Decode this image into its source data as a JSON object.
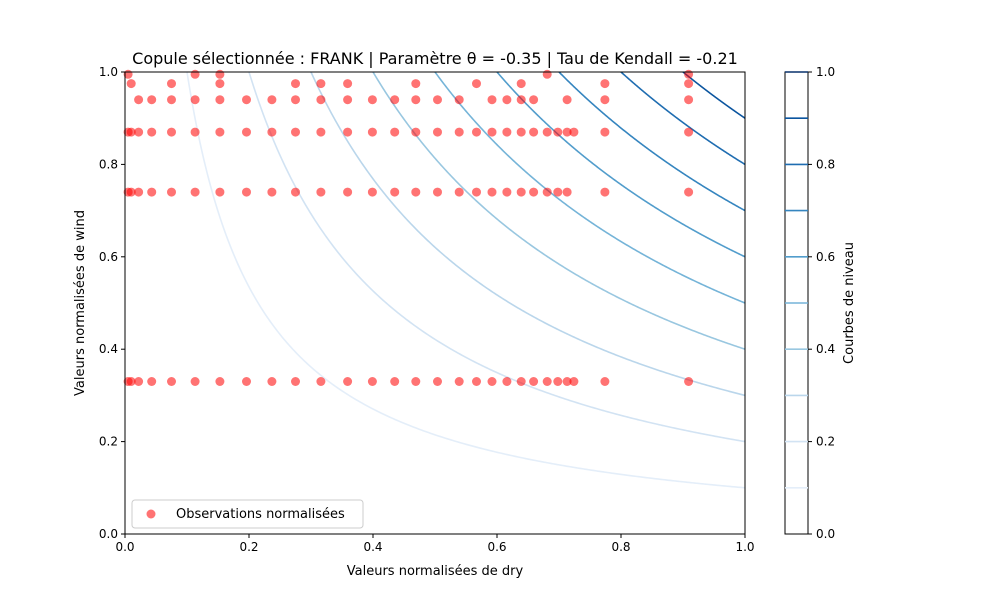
{
  "chart_data": {
    "type": "scatter",
    "title": "Copule sélectionnée : FRANK | Paramètre θ = -0.35 | Tau de Kendall = -0.21",
    "xlabel": "Valeurs normalisées de dry",
    "ylabel": "Valeurs normalisées de wind",
    "xlim": [
      0,
      1
    ],
    "ylim": [
      0,
      1
    ],
    "x_ticks": [
      "0.0",
      "0.2",
      "0.4",
      "0.6",
      "0.8",
      "1.0"
    ],
    "y_ticks": [
      "0.0",
      "0.2",
      "0.4",
      "0.6",
      "0.8",
      "1.0"
    ],
    "grid": false,
    "legend": {
      "position": "lower-left",
      "entries": [
        "Observations normalisées"
      ]
    },
    "scatter_color": "#ff0000",
    "series": [
      {
        "name": "Observations normalisées",
        "x_levels": [
          0.005,
          0.01,
          0.022,
          0.043,
          0.075,
          0.113,
          0.153,
          0.196,
          0.237,
          0.275,
          0.316,
          0.359,
          0.399,
          0.435,
          0.469,
          0.504,
          0.539,
          0.567,
          0.592,
          0.616,
          0.639,
          0.659,
          0.681,
          0.698,
          0.713,
          0.724,
          0.774,
          0.909
        ],
        "y_level_low": 0.33,
        "y_level_mid": 0.74,
        "y_level_87": 0.87,
        "y_level_94": 0.94,
        "y_level_top": [
          0.975,
          0.995
        ],
        "extra_points": [
          [
            0.005,
            0.995
          ],
          [
            0.01,
            0.975
          ],
          [
            0.075,
            0.975
          ],
          [
            0.113,
            0.995
          ],
          [
            0.153,
            0.995
          ],
          [
            0.153,
            0.975
          ],
          [
            0.275,
            0.975
          ],
          [
            0.316,
            0.975
          ],
          [
            0.359,
            0.975
          ],
          [
            0.469,
            0.975
          ],
          [
            0.567,
            0.975
          ],
          [
            0.639,
            0.975
          ],
          [
            0.681,
            0.995
          ],
          [
            0.774,
            0.975
          ],
          [
            0.909,
            0.975
          ],
          [
            0.909,
            0.995
          ],
          [
            0.022,
            0.94
          ],
          [
            0.043,
            0.94
          ],
          [
            0.075,
            0.94
          ],
          [
            0.113,
            0.94
          ],
          [
            0.153,
            0.94
          ],
          [
            0.196,
            0.94
          ],
          [
            0.237,
            0.94
          ],
          [
            0.275,
            0.94
          ],
          [
            0.316,
            0.94
          ],
          [
            0.359,
            0.94
          ],
          [
            0.399,
            0.94
          ],
          [
            0.435,
            0.94
          ],
          [
            0.469,
            0.94
          ],
          [
            0.504,
            0.94
          ],
          [
            0.539,
            0.94
          ],
          [
            0.592,
            0.94
          ],
          [
            0.616,
            0.94
          ],
          [
            0.639,
            0.94
          ],
          [
            0.659,
            0.94
          ],
          [
            0.713,
            0.94
          ],
          [
            0.774,
            0.94
          ],
          [
            0.909,
            0.94
          ]
        ]
      }
    ],
    "contour": {
      "name": "Courbes de niveau",
      "levels": [
        0.1,
        0.2,
        0.3,
        0.4,
        0.5,
        0.6,
        0.7,
        0.8,
        0.9,
        1.0
      ],
      "theta": -0.35,
      "colorbar_ticks": [
        "0.0",
        "0.2",
        "0.4",
        "0.6",
        "0.8",
        "1.0"
      ],
      "colors": [
        "#e4eef9",
        "#d2e3f3",
        "#bad6eb",
        "#99c7e0",
        "#75b4d8",
        "#529dcc",
        "#3585bf",
        "#1f6db1",
        "#0b559f",
        "#08306b"
      ]
    }
  }
}
